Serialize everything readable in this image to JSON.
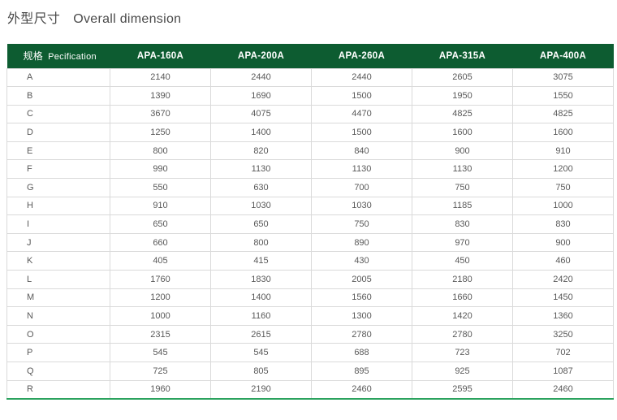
{
  "page_title": {
    "zh": "外型尺寸",
    "en": "Overall dimension"
  },
  "table": {
    "header": {
      "spec_zh": "规格",
      "spec_en": "Pecification",
      "models": [
        "APA-160A",
        "APA-200A",
        "APA-260A",
        "APA-315A",
        "APA-400A"
      ]
    },
    "rows": [
      {
        "dim": "A",
        "values": [
          "2140",
          "2440",
          "2440",
          "2605",
          "3075"
        ]
      },
      {
        "dim": "B",
        "values": [
          "1390",
          "1690",
          "1500",
          "1950",
          "1550"
        ]
      },
      {
        "dim": "C",
        "values": [
          "3670",
          "4075",
          "4470",
          "4825",
          "4825"
        ]
      },
      {
        "dim": "D",
        "values": [
          "1250",
          "1400",
          "1500",
          "1600",
          "1600"
        ]
      },
      {
        "dim": "E",
        "values": [
          "800",
          "820",
          "840",
          "900",
          "910"
        ]
      },
      {
        "dim": "F",
        "values": [
          "990",
          "1130",
          "1130",
          "1130",
          "1200"
        ]
      },
      {
        "dim": "G",
        "values": [
          "550",
          "630",
          "700",
          "750",
          "750"
        ]
      },
      {
        "dim": "H",
        "values": [
          "910",
          "1030",
          "1030",
          "1185",
          "1000"
        ]
      },
      {
        "dim": "I",
        "values": [
          "650",
          "650",
          "750",
          "830",
          "830"
        ]
      },
      {
        "dim": "J",
        "values": [
          "660",
          "800",
          "890",
          "970",
          "900"
        ]
      },
      {
        "dim": "K",
        "values": [
          "405",
          "415",
          "430",
          "450",
          "460"
        ]
      },
      {
        "dim": "L",
        "values": [
          "1760",
          "1830",
          "2005",
          "2180",
          "2420"
        ]
      },
      {
        "dim": "M",
        "values": [
          "1200",
          "1400",
          "1560",
          "1660",
          "1450"
        ]
      },
      {
        "dim": "N",
        "values": [
          "1000",
          "1160",
          "1300",
          "1420",
          "1360"
        ]
      },
      {
        "dim": "O",
        "values": [
          "2315",
          "2615",
          "2780",
          "2780",
          "3250"
        ]
      },
      {
        "dim": "P",
        "values": [
          "545",
          "545",
          "688",
          "723",
          "702"
        ]
      },
      {
        "dim": "Q",
        "values": [
          "725",
          "805",
          "895",
          "925",
          "1087"
        ]
      },
      {
        "dim": "R",
        "values": [
          "1960",
          "2190",
          "2460",
          "2595",
          "2460"
        ]
      }
    ]
  },
  "colors": {
    "header_bg": "#0d5c31",
    "header_text": "#ffffff",
    "accent_bottom_line": "#2ba25e",
    "cell_border": "#dadada",
    "body_text": "#595959",
    "title_text": "#4a4a4a"
  }
}
